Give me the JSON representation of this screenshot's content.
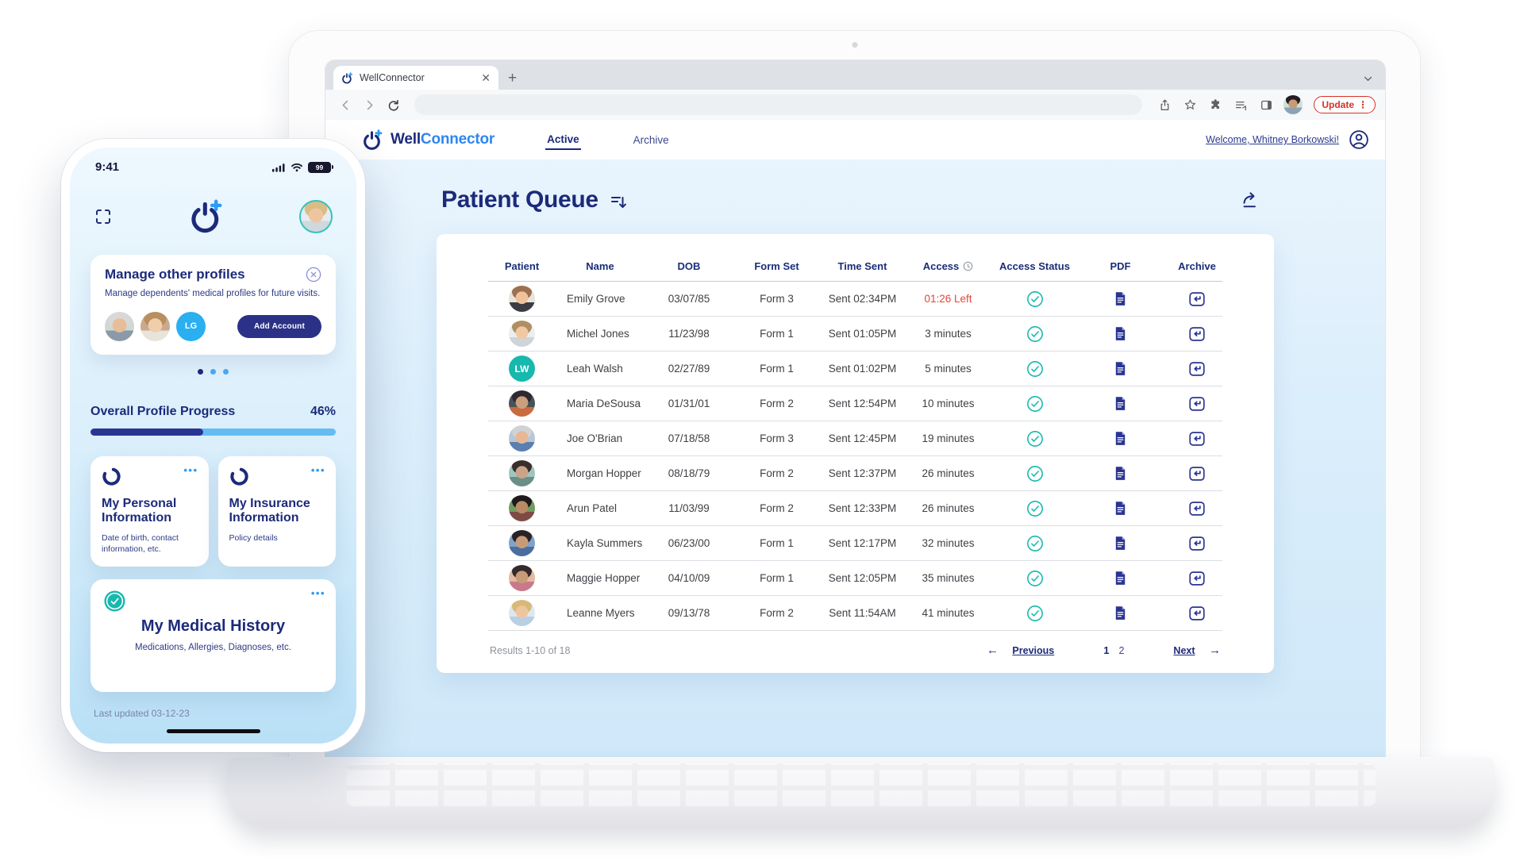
{
  "browser": {
    "tab_title": "WellConnector",
    "update_button": "Update"
  },
  "nav": {
    "brand_well": "Well",
    "brand_connector": "Connector",
    "tab_active": "Active",
    "tab_archive": "Archive",
    "welcome": "Welcome, Whitney Borkowski!"
  },
  "page": {
    "title": "Patient Queue"
  },
  "table": {
    "columns": [
      "Patient",
      "Name",
      "DOB",
      "Form Set",
      "Time Sent",
      "Access",
      "Access Status",
      "PDF",
      "Archive"
    ],
    "rows": [
      {
        "name": "Emily Grove",
        "dob": "03/07/85",
        "form": "Form 3",
        "sent": "Sent 02:34PM",
        "access": "01:26 Left",
        "alert": true
      },
      {
        "name": "Michel Jones",
        "dob": "11/23/98",
        "form": "Form 1",
        "sent": "Sent 01:05PM",
        "access": "3 minutes"
      },
      {
        "name": "Leah Walsh",
        "dob": "02/27/89",
        "form": "Form 1",
        "sent": "Sent 01:02PM",
        "access": "5 minutes",
        "initials": "LW"
      },
      {
        "name": "Maria DeSousa",
        "dob": "01/31/01",
        "form": "Form 2",
        "sent": "Sent 12:54PM",
        "access": "10 minutes"
      },
      {
        "name": "Joe O'Brian",
        "dob": "07/18/58",
        "form": "Form 3",
        "sent": "Sent 12:45PM",
        "access": "19 minutes"
      },
      {
        "name": "Morgan Hopper",
        "dob": "08/18/79",
        "form": "Form 2",
        "sent": "Sent 12:37PM",
        "access": "26 minutes"
      },
      {
        "name": "Arun Patel",
        "dob": "11/03/99",
        "form": "Form 2",
        "sent": "Sent 12:33PM",
        "access": "26 minutes"
      },
      {
        "name": "Kayla Summers",
        "dob": "06/23/00",
        "form": "Form 1",
        "sent": "Sent 12:17PM",
        "access": "32 minutes"
      },
      {
        "name": "Maggie Hopper",
        "dob": "04/10/09",
        "form": "Form 1",
        "sent": "Sent 12:05PM",
        "access": "35 minutes"
      },
      {
        "name": "Leanne Myers",
        "dob": "09/13/78",
        "form": "Form 2",
        "sent": "Sent 11:54AM",
        "access": "41 minutes"
      }
    ],
    "footer": {
      "results": "Results 1-10 of 18",
      "previous": "Previous",
      "pages": [
        "1",
        "2"
      ],
      "next": "Next"
    }
  },
  "phone": {
    "status_time": "9:41",
    "battery": "99",
    "manage_card": {
      "title": "Manage other profiles",
      "subtitle": "Manage dependents' medical profiles for future visits.",
      "avatar_initials": "LG",
      "add_button": "Add Account"
    },
    "progress": {
      "label": "Overall Profile Progress",
      "value": "46%",
      "percent": 46
    },
    "cards": [
      {
        "title": "My Personal Information",
        "subtitle": "Date of birth, contact information, etc."
      },
      {
        "title": "My Insurance Information",
        "subtitle": "Policy details"
      }
    ],
    "history": {
      "title": "My Medical History",
      "subtitle": "Medications, Allergies, Diagnoses, etc."
    },
    "last_updated": "Last updated 03-12-23"
  },
  "colors": {
    "navy": "#1c2a7a",
    "blue": "#2e86f0",
    "teal": "#17b8ae",
    "alert_red": "#e2453c",
    "light_blue": "#35a3f5"
  }
}
